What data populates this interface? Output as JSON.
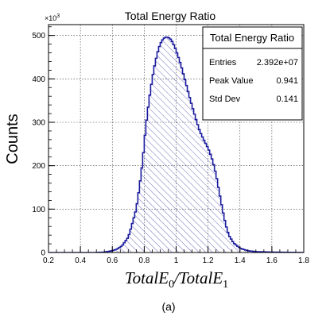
{
  "chart_data": {
    "type": "histogram",
    "title": "Total Energy Ratio",
    "xlabel_main": "TotalE",
    "xlabel_sub0": "0",
    "xlabel_slash": "/",
    "xlabel_sub1": "1",
    "ylabel": "Counts",
    "yscale_label": "×10",
    "yscale_exp": "3",
    "caption": "(a)",
    "xlim": [
      0.2,
      1.8
    ],
    "ylim": [
      0,
      525
    ],
    "xticks": [
      "0.2",
      "0.4",
      "0.6",
      "0.8",
      "1",
      "1.2",
      "1.4",
      "1.6",
      "1.8"
    ],
    "yticks": [
      "0",
      "100",
      "200",
      "300",
      "400",
      "500"
    ],
    "grid": true,
    "fill_pattern": "diagonal-hatch",
    "line_color": "#1a1a9e",
    "hatch_color": "#4a4ab0",
    "curve_points": [
      [
        0.2,
        0
      ],
      [
        0.5,
        0
      ],
      [
        0.55,
        1
      ],
      [
        0.6,
        4
      ],
      [
        0.63,
        8
      ],
      [
        0.66,
        15
      ],
      [
        0.7,
        35
      ],
      [
        0.72,
        60
      ],
      [
        0.75,
        100
      ],
      [
        0.77,
        150
      ],
      [
        0.79,
        210
      ],
      [
        0.81,
        290
      ],
      [
        0.83,
        350
      ],
      [
        0.85,
        400
      ],
      [
        0.87,
        440
      ],
      [
        0.89,
        470
      ],
      [
        0.91,
        488
      ],
      [
        0.93,
        496
      ],
      [
        0.95,
        496
      ],
      [
        0.97,
        490
      ],
      [
        0.99,
        475
      ],
      [
        1.01,
        455
      ],
      [
        1.03,
        432
      ],
      [
        1.05,
        405
      ],
      [
        1.07,
        378
      ],
      [
        1.09,
        350
      ],
      [
        1.11,
        325
      ],
      [
        1.13,
        300
      ],
      [
        1.15,
        278
      ],
      [
        1.17,
        262
      ],
      [
        1.19,
        248
      ],
      [
        1.21,
        232
      ],
      [
        1.23,
        210
      ],
      [
        1.25,
        180
      ],
      [
        1.27,
        140
      ],
      [
        1.29,
        100
      ],
      [
        1.31,
        65
      ],
      [
        1.33,
        40
      ],
      [
        1.36,
        22
      ],
      [
        1.4,
        10
      ],
      [
        1.45,
        4
      ],
      [
        1.5,
        2
      ],
      [
        1.6,
        1
      ],
      [
        1.8,
        0
      ]
    ],
    "bin_width": 0.01,
    "stats_box": {
      "title": "Total Energy Ratio",
      "entries_label": "Entries",
      "entries_value": "2.392e+07",
      "peak_label": "Peak Value",
      "peak_value": "0.941",
      "std_label": "Std Dev",
      "std_value": "0.141"
    }
  }
}
